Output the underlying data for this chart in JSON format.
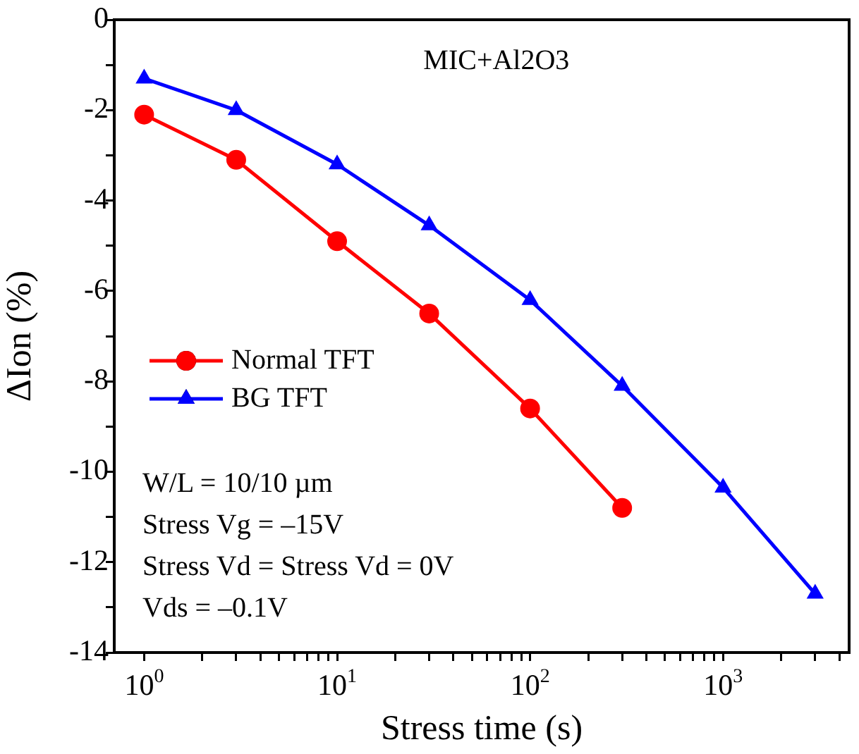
{
  "chart_data": {
    "type": "line",
    "xlabel": "Stress time (s)",
    "ylabel": "ΔIon (%)",
    "log": "x",
    "xlim": [
      0.7,
      4500
    ],
    "xticks": [
      {
        "value": 1,
        "label": "10$^{0}$"
      },
      {
        "value": 2,
        "label": null
      },
      {
        "value": 3,
        "label": null
      },
      {
        "value": 4,
        "label": null
      },
      {
        "value": 5,
        "label": null
      },
      {
        "value": 6,
        "label": null
      },
      {
        "value": 7,
        "label": null
      },
      {
        "value": 8,
        "label": null
      },
      {
        "value": 9,
        "label": null
      },
      {
        "value": 10,
        "label": "10$^{1}$"
      },
      {
        "value": 20,
        "label": null
      },
      {
        "value": 30,
        "label": null
      },
      {
        "value": 40,
        "label": null
      },
      {
        "value": 50,
        "label": null
      },
      {
        "value": 60,
        "label": null
      },
      {
        "value": 70,
        "label": null
      },
      {
        "value": 80,
        "label": null
      },
      {
        "value": 90,
        "label": null
      },
      {
        "value": 100,
        "label": "10$^{2}$"
      },
      {
        "value": 200,
        "label": null
      },
      {
        "value": 300,
        "label": null
      },
      {
        "value": 400,
        "label": null
      },
      {
        "value": 500,
        "label": null
      },
      {
        "value": 600,
        "label": null
      },
      {
        "value": 700,
        "label": null
      },
      {
        "value": 800,
        "label": null
      },
      {
        "value": 900,
        "label": null
      },
      {
        "value": 1000,
        "label": "10$^{3}$"
      },
      {
        "value": 2000,
        "label": null
      },
      {
        "value": 3000,
        "label": null
      },
      {
        "value": 4000,
        "label": null
      }
    ],
    "ylim": [
      -14,
      0
    ],
    "yticks": [
      -14,
      {
        "value": -13,
        "label": null
      },
      -12,
      {
        "value": -11,
        "label": null
      },
      -10,
      {
        "value": -9,
        "label": null
      },
      -8,
      {
        "value": -7,
        "label": null
      },
      -6,
      {
        "value": -5,
        "label": null
      },
      -4,
      {
        "value": -3,
        "label": null
      },
      -2,
      {
        "value": -1,
        "label": null
      },
      0
    ],
    "grid": false,
    "legend": "center left",
    "line_style": "solid",
    "series": [
      {
        "name": "Normal TFT",
        "color": "#ff0000",
        "marker": "circle",
        "x": [
          1,
          3,
          10,
          30,
          100,
          300
        ],
        "values": [
          -2.1,
          -3.1,
          -4.9,
          -6.5,
          -8.6,
          -10.8
        ]
      },
      {
        "name": "BG TFT",
        "color": "#0000ff",
        "marker": "triangle",
        "x": [
          1,
          3,
          10,
          30,
          100,
          300,
          1000,
          3000
        ],
        "values": [
          -1.3,
          -2.0,
          -3.2,
          -4.55,
          -6.2,
          -8.1,
          -10.35,
          -12.7
        ]
      }
    ],
    "annotations": [
      "MIC+Al2O3",
      "W/L = 10/10 µm",
      "Stress Vg = –15V",
      "Stress Vd = Stress Vd = 0V",
      "Vds = –0.1V"
    ]
  }
}
